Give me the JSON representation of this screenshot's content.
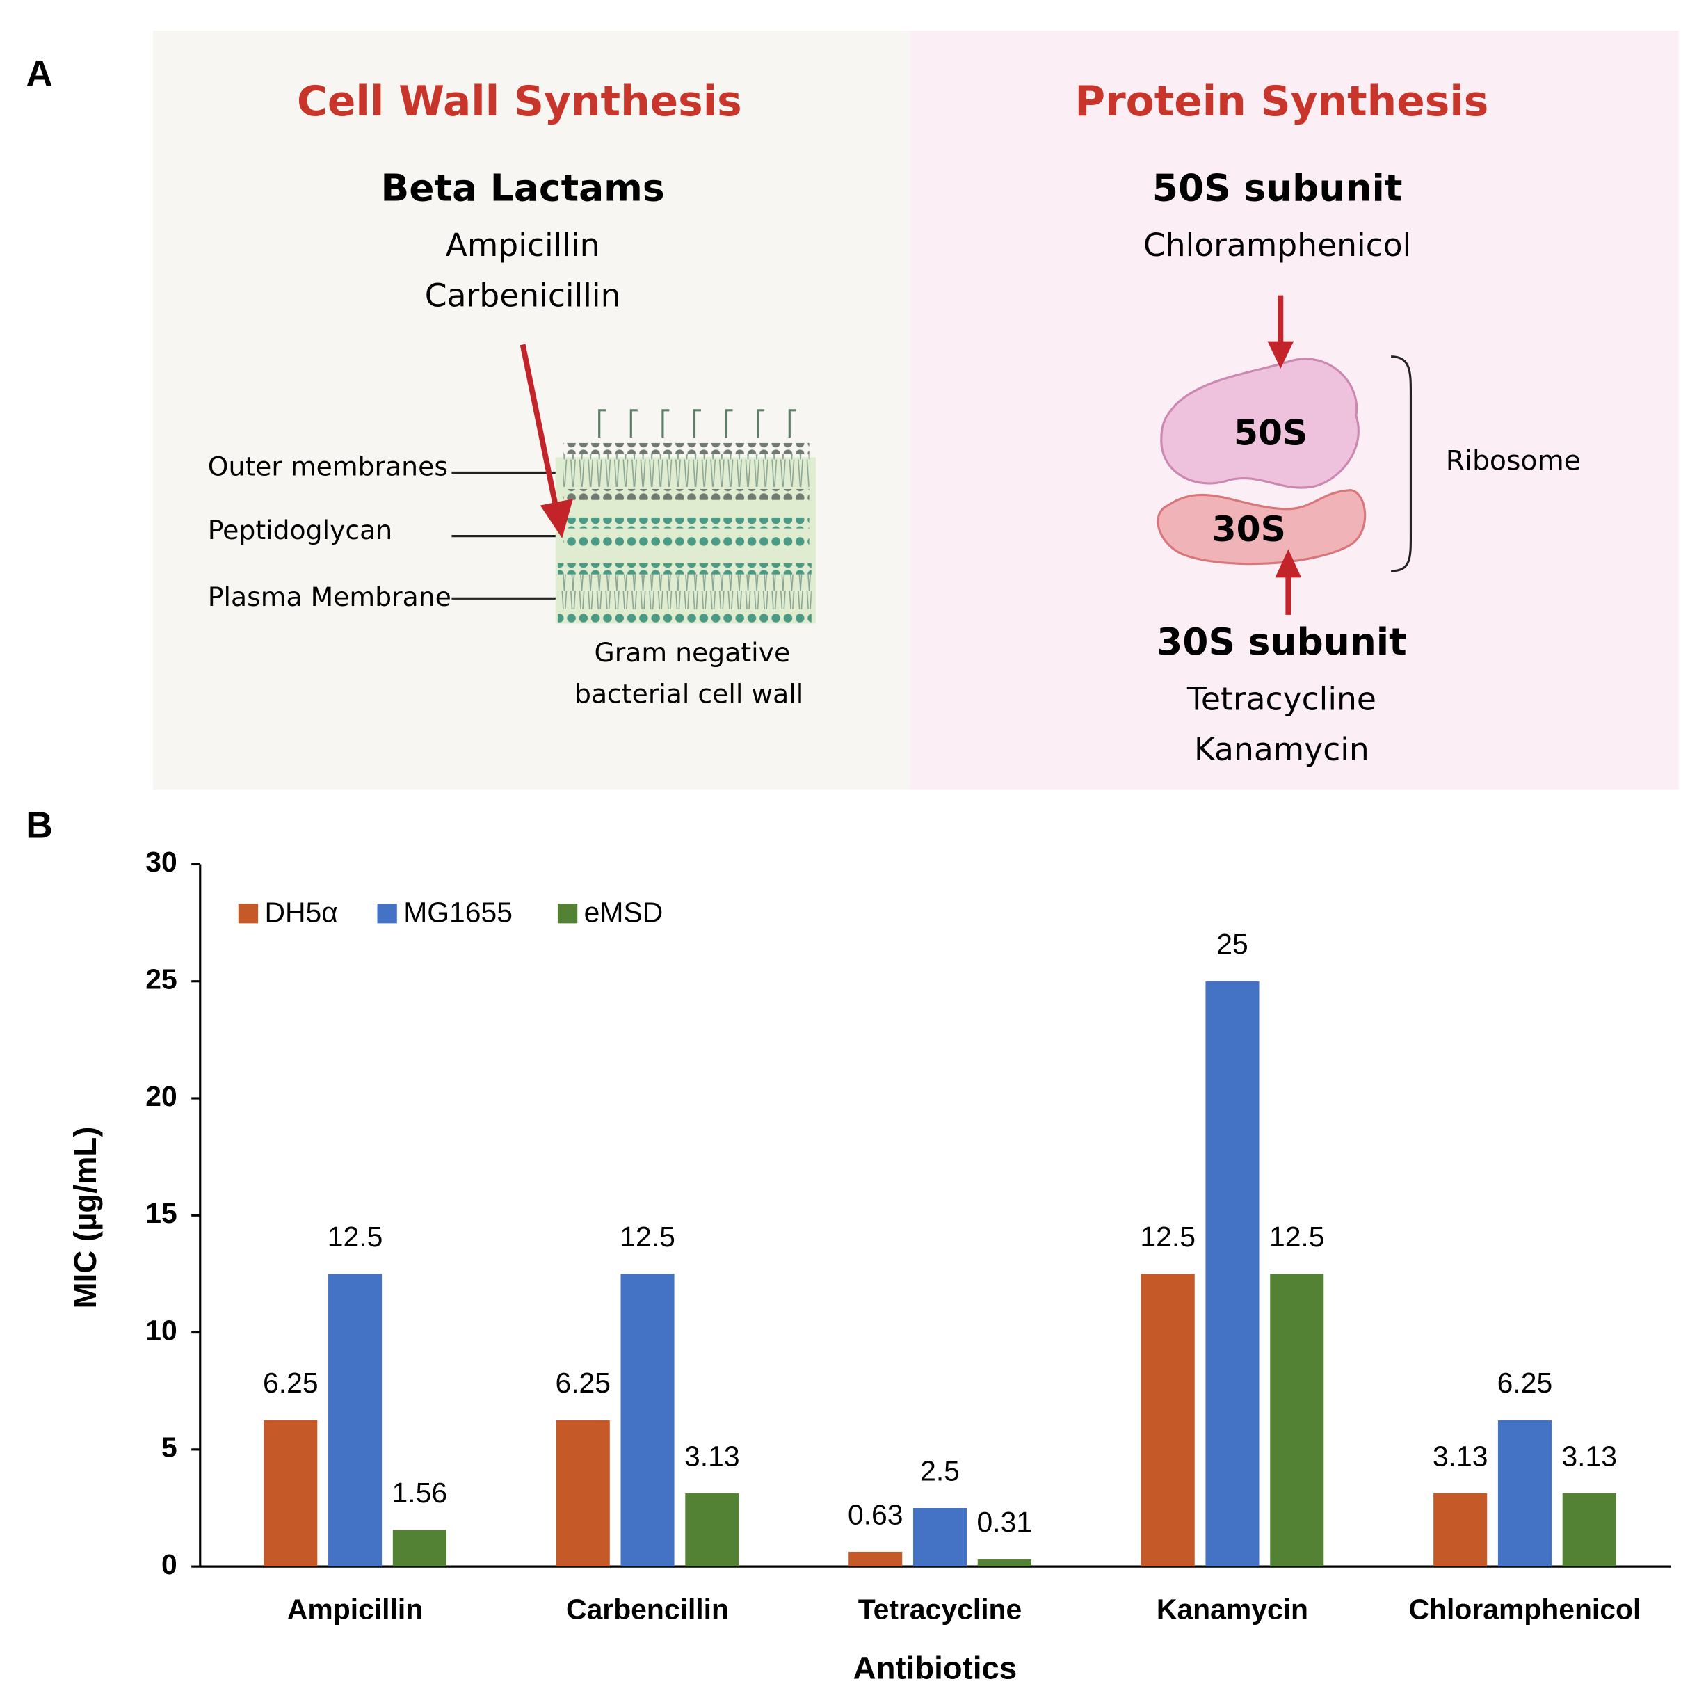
{
  "panel_labels": [
    "A",
    "B"
  ],
  "panel_a": {
    "cell_wall": {
      "title": "Cell Wall Synthesis",
      "class_name": "Beta Lactams",
      "drugs": [
        "Ampicillin",
        "Carbenicillin"
      ],
      "layers": [
        "Outer membranes",
        "Peptidoglycan",
        "Plasma Membrane"
      ],
      "caption": [
        "Gram negative",
        "bacterial cell wall"
      ]
    },
    "protein": {
      "title": "Protein Synthesis",
      "subunits": [
        {
          "name": "50S subunit",
          "drugs": [
            "Chloramphenicol"
          ]
        },
        {
          "name": "30S subunit",
          "drugs": [
            "Tetracycline",
            "Kanamycin"
          ]
        }
      ],
      "ribosome_parts": [
        "50S",
        "30S"
      ],
      "ribosome_label": "Ribosome"
    }
  },
  "chart_data": {
    "type": "bar",
    "x_label": "Antibiotics",
    "y_label": "MIC (µg/mL)",
    "categories": [
      "Ampicillin",
      "Carbencillin",
      "Tetracycline",
      "Kanamycin",
      "Chloramphenicol"
    ],
    "series": [
      {
        "name": "DH5α",
        "color": "#c55a28",
        "values": [
          6.25,
          6.25,
          0.63,
          12.5,
          3.13
        ]
      },
      {
        "name": "MG1655",
        "color": "#4472c4",
        "values": [
          12.5,
          12.5,
          2.5,
          25,
          6.25
        ]
      },
      {
        "name": "eMSD",
        "color": "#548235",
        "values": [
          1.56,
          3.13,
          0.31,
          12.5,
          3.13
        ]
      }
    ],
    "ylim": [
      0,
      30
    ],
    "yticks": [
      0,
      5,
      10,
      15,
      20,
      25,
      30
    ],
    "legend": "top-left",
    "grid": false
  }
}
